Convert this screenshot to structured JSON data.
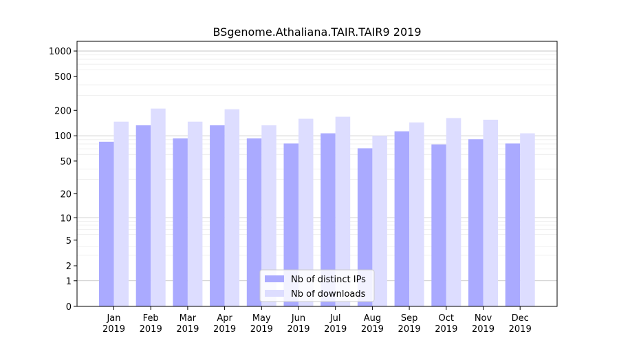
{
  "chart_data": {
    "type": "bar",
    "title": "BSgenome.Athaliana.TAIR.TAIR9 2019",
    "xlabel": "",
    "ylabel": "",
    "categories": [
      "Jan\n2019",
      "Feb\n2019",
      "Mar\n2019",
      "Apr\n2019",
      "May\n2019",
      "Jun\n2019",
      "Jul\n2019",
      "Aug\n2019",
      "Sep\n2019",
      "Oct\n2019",
      "Nov\n2019",
      "Dec\n2019"
    ],
    "series": [
      {
        "name": "Nb of distinct IPs",
        "color": "#aaaaff",
        "values": [
          85,
          133,
          93,
          133,
          93,
          81,
          107,
          71,
          113,
          79,
          91,
          81
        ]
      },
      {
        "name": "Nb of downloads",
        "color": "#ddddff",
        "values": [
          147,
          210,
          147,
          206,
          133,
          159,
          168,
          100,
          144,
          162,
          155,
          107
        ]
      }
    ],
    "yscale": "log(1+y)",
    "ylim": [
      0,
      1300
    ],
    "yticks": [
      0,
      1,
      2,
      5,
      10,
      20,
      50,
      100,
      200,
      500,
      1000
    ],
    "grid": true,
    "legend_position": "bottom-center"
  }
}
